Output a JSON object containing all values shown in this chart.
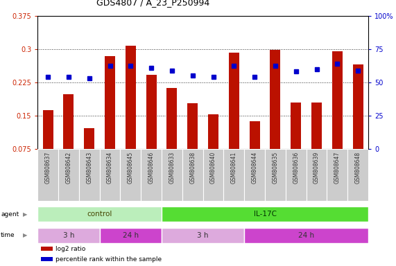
{
  "title": "GDS4807 / A_23_P250994",
  "samples": [
    "GSM808637",
    "GSM808642",
    "GSM808643",
    "GSM808634",
    "GSM808645",
    "GSM808646",
    "GSM808633",
    "GSM808638",
    "GSM808640",
    "GSM808641",
    "GSM808644",
    "GSM808635",
    "GSM808636",
    "GSM808639",
    "GSM808647",
    "GSM808648"
  ],
  "log2_ratio": [
    0.162,
    0.198,
    0.122,
    0.284,
    0.308,
    0.242,
    0.212,
    0.178,
    0.153,
    0.293,
    0.138,
    0.299,
    0.18,
    0.18,
    0.295,
    0.265
  ],
  "percentile_y": [
    0.238,
    0.238,
    0.234,
    0.263,
    0.263,
    0.258,
    0.252,
    0.24,
    0.238,
    0.263,
    0.238,
    0.263,
    0.25,
    0.254,
    0.268,
    0.252
  ],
  "y_min": 0.075,
  "y_max": 0.375,
  "yticks_left": [
    0.075,
    0.15,
    0.225,
    0.3,
    0.375
  ],
  "yticks_right": [
    0,
    25,
    50,
    75,
    100
  ],
  "bar_color": "#bb1100",
  "dot_color": "#0000cc",
  "agent_groups": [
    {
      "label": "control",
      "start": 0,
      "end": 6,
      "color": "#bbeebb"
    },
    {
      "label": "IL-17C",
      "start": 6,
      "end": 16,
      "color": "#55dd33"
    }
  ],
  "time_groups": [
    {
      "label": "3 h",
      "start": 0,
      "end": 3,
      "color": "#ddaadd"
    },
    {
      "label": "24 h",
      "start": 3,
      "end": 6,
      "color": "#cc44cc"
    },
    {
      "label": "3 h",
      "start": 6,
      "end": 10,
      "color": "#ddaadd"
    },
    {
      "label": "24 h",
      "start": 10,
      "end": 16,
      "color": "#cc44cc"
    }
  ],
  "legend_items": [
    {
      "color": "#bb1100",
      "label": "log2 ratio"
    },
    {
      "color": "#0000cc",
      "label": "percentile rank within the sample"
    }
  ],
  "left_axis_color": "#cc2200",
  "right_axis_color": "#0000cc",
  "grid_color": "#333333",
  "tick_color": "#888888",
  "plot_bg": "#ffffff",
  "sample_bg": "#cccccc"
}
